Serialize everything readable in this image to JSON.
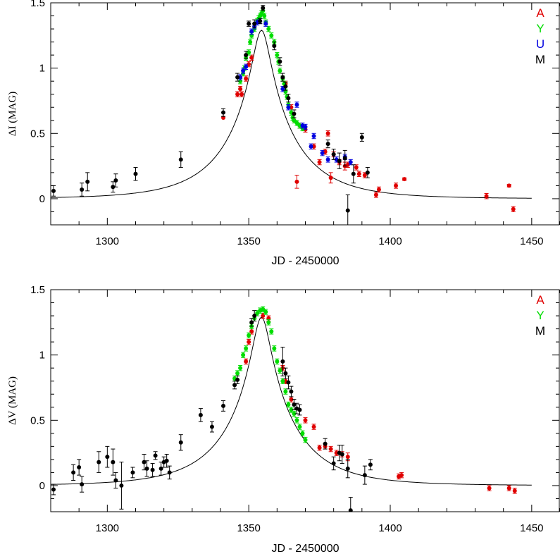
{
  "chart_data": [
    {
      "type": "scatter",
      "xlabel": "JD - 2450000",
      "ylabel_symbol": "Δ",
      "ylabel_letter": "I",
      "ylabel_unit": "(MAG)",
      "xlim": [
        1280,
        1460
      ],
      "ylim": [
        -0.2,
        1.5
      ],
      "xticks": [
        1300,
        1350,
        1400,
        1450
      ],
      "yticks": [
        0,
        0.5,
        1,
        1.5
      ],
      "legend": [
        {
          "name": "A",
          "color": "#e00000"
        },
        {
          "name": "Y",
          "color": "#00dd00"
        },
        {
          "name": "U",
          "color": "#0000e0"
        },
        {
          "name": "M",
          "color": "#000000"
        }
      ],
      "series": [
        {
          "name": "A",
          "color": "#e00000",
          "points": [
            [
              1341,
              0.62,
              0
            ],
            [
              1346,
              0.8,
              0.02
            ],
            [
              1347,
              0.84,
              0.02
            ],
            [
              1347.5,
              0.8,
              0.02
            ],
            [
              1349,
              0.92,
              0.02
            ],
            [
              1350,
              1.03,
              0.02
            ],
            [
              1351,
              1.08,
              0.02
            ],
            [
              1363,
              0.88,
              0.02
            ],
            [
              1365,
              0.7,
              0.02
            ],
            [
              1366,
              0.6,
              0.02
            ],
            [
              1367,
              0.13,
              0.05
            ],
            [
              1368,
              0.56,
              0.02
            ],
            [
              1370,
              0.53,
              0.02
            ],
            [
              1373,
              0.4,
              0.02
            ],
            [
              1375,
              0.28,
              0.02
            ],
            [
              1377,
              0.36,
              0.02
            ],
            [
              1378,
              0.5,
              0.02
            ],
            [
              1379,
              0.16,
              0.04
            ],
            [
              1380,
              0.34,
              0.02
            ],
            [
              1382,
              0.28,
              0.02
            ],
            [
              1384,
              0.25,
              0.03
            ],
            [
              1385,
              0.26,
              0.02
            ],
            [
              1388,
              0.24,
              0.02
            ],
            [
              1389,
              0.19,
              0.02
            ],
            [
              1391,
              0.18,
              0.02
            ],
            [
              1395,
              0.03,
              0.02
            ],
            [
              1396,
              0.07,
              0.02
            ],
            [
              1402,
              0.1,
              0.02
            ],
            [
              1405,
              0.15,
              0.01
            ],
            [
              1434,
              0.02,
              0.02
            ],
            [
              1442,
              0.1,
              0.01
            ],
            [
              1443.5,
              -0.08,
              0.02
            ]
          ]
        },
        {
          "name": "Y",
          "color": "#00dd00",
          "points": [
            [
              1347,
              0.9,
              0.02
            ],
            [
              1348,
              0.96,
              0.02
            ],
            [
              1348.5,
              1.0,
              0.02
            ],
            [
              1349,
              1.08,
              0.02
            ],
            [
              1350,
              1.12,
              0.02
            ],
            [
              1350.5,
              1.2,
              0.02
            ],
            [
              1351,
              1.25,
              0.02
            ],
            [
              1352,
              1.3,
              0.02
            ],
            [
              1353,
              1.36,
              0.02
            ],
            [
              1353.5,
              1.38,
              0.02
            ],
            [
              1354,
              1.4,
              0.02
            ],
            [
              1354.5,
              1.42,
              0.02
            ],
            [
              1355,
              1.44,
              0.02
            ],
            [
              1355.5,
              1.4,
              0.02
            ],
            [
              1356,
              1.35,
              0.02
            ],
            [
              1357,
              1.3,
              0.02
            ],
            [
              1358,
              1.25,
              0.02
            ],
            [
              1359,
              1.2,
              0.02
            ],
            [
              1360,
              1.1,
              0.02
            ],
            [
              1360.5,
              1.05,
              0.02
            ],
            [
              1361,
              0.98,
              0.02
            ],
            [
              1362,
              0.92,
              0.02
            ],
            [
              1362.5,
              0.88,
              0.02
            ],
            [
              1363,
              0.82,
              0.02
            ],
            [
              1363.5,
              0.78,
              0.02
            ],
            [
              1364,
              0.72,
              0.02
            ],
            [
              1365,
              0.66,
              0.02
            ],
            [
              1365.5,
              0.62,
              0.02
            ],
            [
              1366,
              0.6,
              0.02
            ],
            [
              1367,
              0.58,
              0.02
            ],
            [
              1368,
              0.56,
              0.02
            ],
            [
              1369,
              0.54,
              0.02
            ]
          ]
        },
        {
          "name": "U",
          "color": "#0000e0",
          "points": [
            [
              1347,
              0.93,
              0.02
            ],
            [
              1348,
              0.98,
              0.02
            ],
            [
              1349,
              1.01,
              0.02
            ],
            [
              1351,
              1.28,
              0.02
            ],
            [
              1352,
              1.32,
              0.02
            ],
            [
              1353,
              1.35,
              0.02
            ],
            [
              1354,
              1.36,
              0.02
            ],
            [
              1356,
              1.34,
              0.02
            ],
            [
              1362,
              0.84,
              0.02
            ],
            [
              1364,
              0.7,
              0.02
            ],
            [
              1367,
              0.72,
              0.02
            ],
            [
              1369,
              0.56,
              0.02
            ],
            [
              1370,
              0.55,
              0.02
            ],
            [
              1372,
              0.4,
              0.02
            ],
            [
              1373,
              0.48,
              0.02
            ],
            [
              1376,
              0.35,
              0.02
            ],
            [
              1378,
              0.3,
              0.02
            ],
            [
              1381,
              0.3,
              0.02
            ],
            [
              1384,
              0.32,
              0.02
            ],
            [
              1386,
              0.28,
              0.02
            ]
          ]
        },
        {
          "name": "M",
          "color": "#000000",
          "points": [
            [
              1281,
              0.06,
              0.04
            ],
            [
              1291,
              0.07,
              0.05
            ],
            [
              1293,
              0.13,
              0.07
            ],
            [
              1302,
              0.09,
              0.04
            ],
            [
              1303,
              0.14,
              0.05
            ],
            [
              1310,
              0.19,
              0.05
            ],
            [
              1326,
              0.3,
              0.06
            ],
            [
              1341,
              0.66,
              0.03
            ],
            [
              1346,
              0.93,
              0.03
            ],
            [
              1349,
              1.1,
              0.03
            ],
            [
              1350,
              1.34,
              0.02
            ],
            [
              1352,
              1.34,
              0.03
            ],
            [
              1354,
              1.36,
              0.02
            ],
            [
              1355,
              1.46,
              0.02
            ],
            [
              1359,
              1.17,
              0.03
            ],
            [
              1361,
              1.05,
              0.03
            ],
            [
              1362,
              0.93,
              0.03
            ],
            [
              1363,
              0.86,
              0.03
            ],
            [
              1364,
              0.77,
              0.03
            ],
            [
              1366,
              0.65,
              0.03
            ],
            [
              1378,
              0.42,
              0.03
            ],
            [
              1380,
              0.34,
              0.04
            ],
            [
              1382,
              0.29,
              0.06
            ],
            [
              1384,
              0.31,
              0.06
            ],
            [
              1385,
              -0.09,
              0.12
            ],
            [
              1387,
              0.19,
              0.07
            ],
            [
              1390,
              0.47,
              0.03
            ],
            [
              1392,
              0.2,
              0.04
            ]
          ]
        }
      ]
    },
    {
      "type": "scatter",
      "xlabel": "JD - 2450000",
      "ylabel_symbol": "Δ",
      "ylabel_letter": "V",
      "ylabel_unit": "(MAG)",
      "xlim": [
        1280,
        1460
      ],
      "ylim": [
        -0.2,
        1.5
      ],
      "xticks": [
        1300,
        1350,
        1400,
        1450
      ],
      "yticks": [
        0,
        0.5,
        1,
        1.5
      ],
      "legend": [
        {
          "name": "A",
          "color": "#e00000"
        },
        {
          "name": "Y",
          "color": "#00dd00"
        },
        {
          "name": "M",
          "color": "#000000"
        }
      ],
      "series": [
        {
          "name": "A",
          "color": "#e00000",
          "points": [
            [
              1349,
              0.95,
              0.02
            ],
            [
              1350,
              1.1,
              0.02
            ],
            [
              1351,
              1.18,
              0.02
            ],
            [
              1355,
              1.3,
              0.02
            ],
            [
              1357,
              1.28,
              0.02
            ],
            [
              1362,
              0.9,
              0.02
            ],
            [
              1363,
              0.8,
              0.02
            ],
            [
              1365,
              0.66,
              0.02
            ],
            [
              1370,
              0.5,
              0.02
            ],
            [
              1373,
              0.45,
              0.02
            ],
            [
              1375,
              0.29,
              0.02
            ],
            [
              1377,
              0.3,
              0.02
            ],
            [
              1379,
              0.28,
              0.02
            ],
            [
              1381,
              0.25,
              0.02
            ],
            [
              1383,
              0.24,
              0.02
            ],
            [
              1385,
              0.22,
              0.03
            ],
            [
              1403,
              0.07,
              0.02
            ],
            [
              1404,
              0.08,
              0.02
            ],
            [
              1435,
              -0.02,
              0.02
            ],
            [
              1442,
              -0.02,
              0.02
            ],
            [
              1444,
              -0.04,
              0.02
            ]
          ]
        },
        {
          "name": "Y",
          "color": "#00dd00",
          "points": [
            [
              1345,
              0.82,
              0.02
            ],
            [
              1346,
              0.86,
              0.02
            ],
            [
              1347,
              0.9,
              0.02
            ],
            [
              1348,
              1.0,
              0.02
            ],
            [
              1349,
              1.05,
              0.02
            ],
            [
              1350,
              1.15,
              0.02
            ],
            [
              1351,
              1.22,
              0.02
            ],
            [
              1352,
              1.28,
              0.02
            ],
            [
              1353,
              1.32,
              0.02
            ],
            [
              1354,
              1.34,
              0.02
            ],
            [
              1355,
              1.35,
              0.02
            ],
            [
              1356,
              1.33,
              0.02
            ],
            [
              1357,
              1.25,
              0.02
            ],
            [
              1358,
              1.18,
              0.02
            ],
            [
              1359,
              1.05,
              0.02
            ],
            [
              1360,
              0.95,
              0.02
            ],
            [
              1361,
              0.88,
              0.02
            ],
            [
              1362,
              0.8,
              0.02
            ],
            [
              1363,
              0.72,
              0.02
            ],
            [
              1364,
              0.62,
              0.02
            ],
            [
              1365,
              0.58,
              0.02
            ],
            [
              1366,
              0.55,
              0.02
            ],
            [
              1367,
              0.5,
              0.02
            ],
            [
              1368,
              0.45,
              0.02
            ],
            [
              1369,
              0.4,
              0.02
            ],
            [
              1370,
              0.35,
              0.02
            ]
          ]
        },
        {
          "name": "M",
          "color": "#000000",
          "points": [
            [
              1281,
              -0.03,
              0.04
            ],
            [
              1288,
              0.1,
              0.06
            ],
            [
              1290,
              0.14,
              0.06
            ],
            [
              1291,
              0.01,
              0.06
            ],
            [
              1297,
              0.18,
              0.08
            ],
            [
              1300,
              0.22,
              0.08
            ],
            [
              1302,
              0.18,
              0.1
            ],
            [
              1303,
              0.04,
              0.06
            ],
            [
              1305,
              0.0,
              0.18
            ],
            [
              1309,
              0.1,
              0.04
            ],
            [
              1313,
              0.18,
              0.06
            ],
            [
              1314,
              0.13,
              0.06
            ],
            [
              1316,
              0.12,
              0.05
            ],
            [
              1317,
              0.23,
              0.03
            ],
            [
              1319,
              0.13,
              0.05
            ],
            [
              1320,
              0.18,
              0.04
            ],
            [
              1321,
              0.19,
              0.05
            ],
            [
              1322,
              0.1,
              0.05
            ],
            [
              1326,
              0.33,
              0.06
            ],
            [
              1333,
              0.54,
              0.05
            ],
            [
              1337,
              0.45,
              0.04
            ],
            [
              1341,
              0.61,
              0.04
            ],
            [
              1345,
              0.77,
              0.03
            ],
            [
              1346,
              0.81,
              0.03
            ],
            [
              1351,
              1.25,
              0.03
            ],
            [
              1352,
              1.3,
              0.04
            ],
            [
              1362,
              0.95,
              0.11
            ],
            [
              1363,
              0.86,
              0.04
            ],
            [
              1364,
              0.79,
              0.05
            ],
            [
              1365,
              0.72,
              0.04
            ],
            [
              1366,
              0.62,
              0.04
            ],
            [
              1367,
              0.59,
              0.04
            ],
            [
              1368,
              0.58,
              0.04
            ],
            [
              1377,
              0.32,
              0.04
            ],
            [
              1380,
              0.17,
              0.05
            ],
            [
              1382,
              0.25,
              0.06
            ],
            [
              1383,
              0.24,
              0.07
            ],
            [
              1385,
              0.13,
              0.07
            ],
            [
              1386,
              -0.19,
              0.1
            ],
            [
              1391,
              0.08,
              0.07
            ],
            [
              1393,
              0.16,
              0.04
            ]
          ]
        }
      ]
    }
  ]
}
